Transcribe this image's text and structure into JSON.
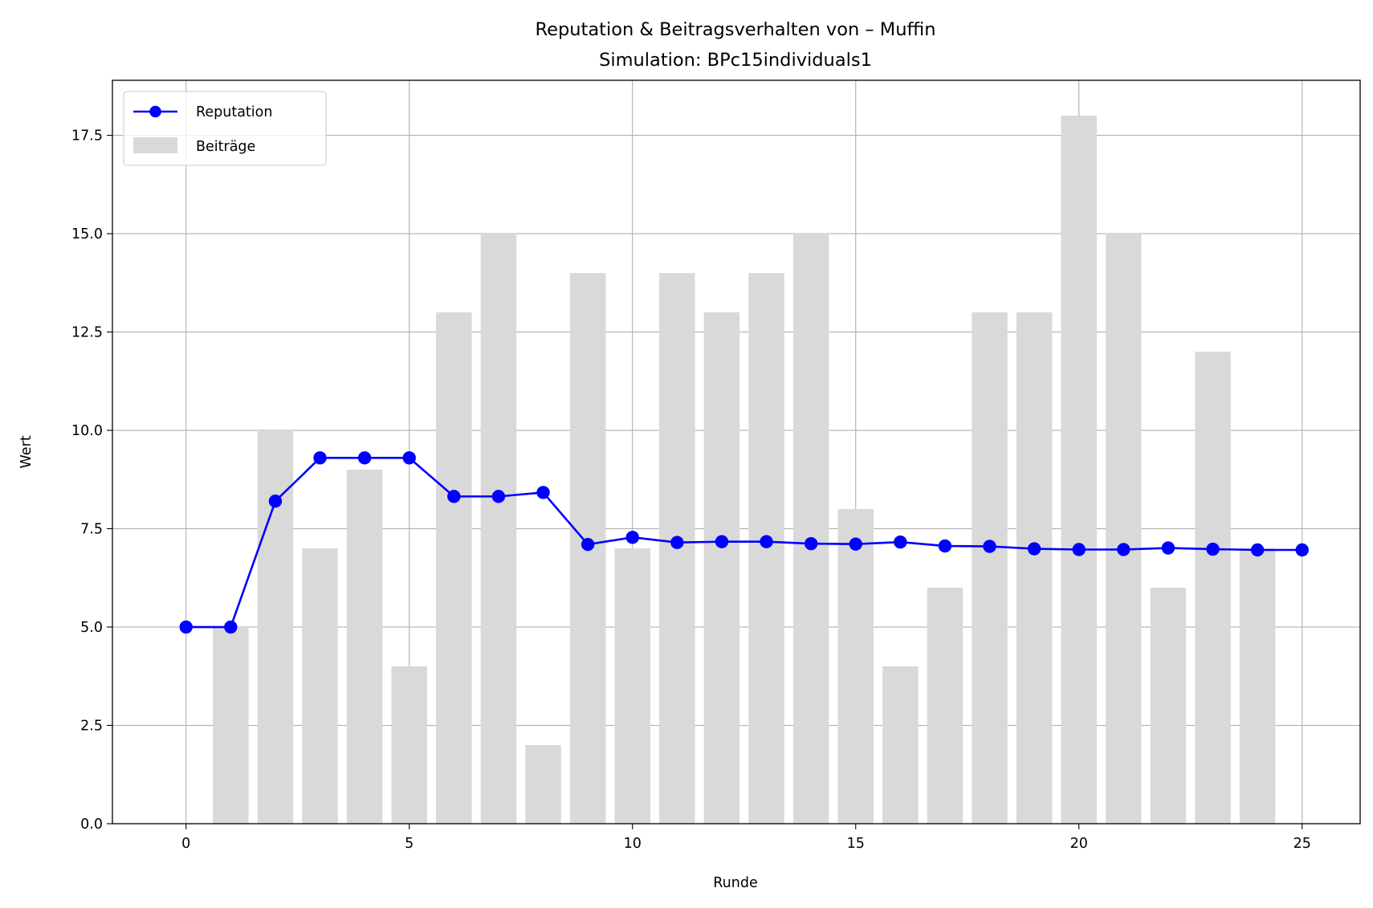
{
  "chart_data": {
    "type": "bar+line",
    "title": "Reputation & Beitragsverhalten von – Muffin",
    "subtitle": "Simulation: BPc15individuals1",
    "xlabel": "Runde",
    "ylabel": "Wert",
    "xlim": [
      -1.65,
      26.3
    ],
    "ylim": [
      0,
      18.9
    ],
    "xticks": [
      0,
      5,
      10,
      15,
      20,
      25
    ],
    "xtick_labels": [
      "0",
      "5",
      "10",
      "15",
      "20",
      "25"
    ],
    "yticks": [
      0,
      2.5,
      5,
      7.5,
      10,
      12.5,
      15,
      17.5
    ],
    "ytick_labels": [
      "0.0",
      "2.5",
      "5.0",
      "7.5",
      "10.0",
      "12.5",
      "15.0",
      "17.5"
    ],
    "grid": true,
    "legend_position": "top-left",
    "legend": [
      "Reputation",
      "Beiträge"
    ],
    "bars": {
      "name": "Beiträge",
      "color": "#d9d9d9",
      "x": [
        1,
        2,
        3,
        4,
        5,
        6,
        7,
        8,
        9,
        10,
        11,
        12,
        13,
        14,
        15,
        16,
        17,
        18,
        19,
        20,
        21,
        22,
        23,
        24
      ],
      "values": [
        5,
        10,
        7,
        9,
        4,
        13,
        15,
        2,
        14,
        7,
        14,
        13,
        14,
        15,
        8,
        4,
        6,
        13,
        13,
        18,
        15,
        6,
        12,
        7
      ]
    },
    "line": {
      "name": "Reputation",
      "color": "#0000ff",
      "x": [
        0,
        1,
        2,
        3,
        4,
        5,
        6,
        7,
        8,
        9,
        10,
        11,
        12,
        13,
        14,
        15,
        16,
        17,
        18,
        19,
        20,
        21,
        22,
        23,
        24,
        25
      ],
      "values": [
        5.0,
        5.0,
        8.2,
        9.3,
        9.3,
        9.3,
        8.32,
        8.32,
        8.42,
        7.1,
        7.28,
        7.15,
        7.17,
        7.17,
        7.12,
        7.11,
        7.16,
        7.06,
        7.05,
        6.99,
        6.97,
        6.97,
        7.01,
        6.98,
        6.96,
        6.96
      ]
    }
  }
}
